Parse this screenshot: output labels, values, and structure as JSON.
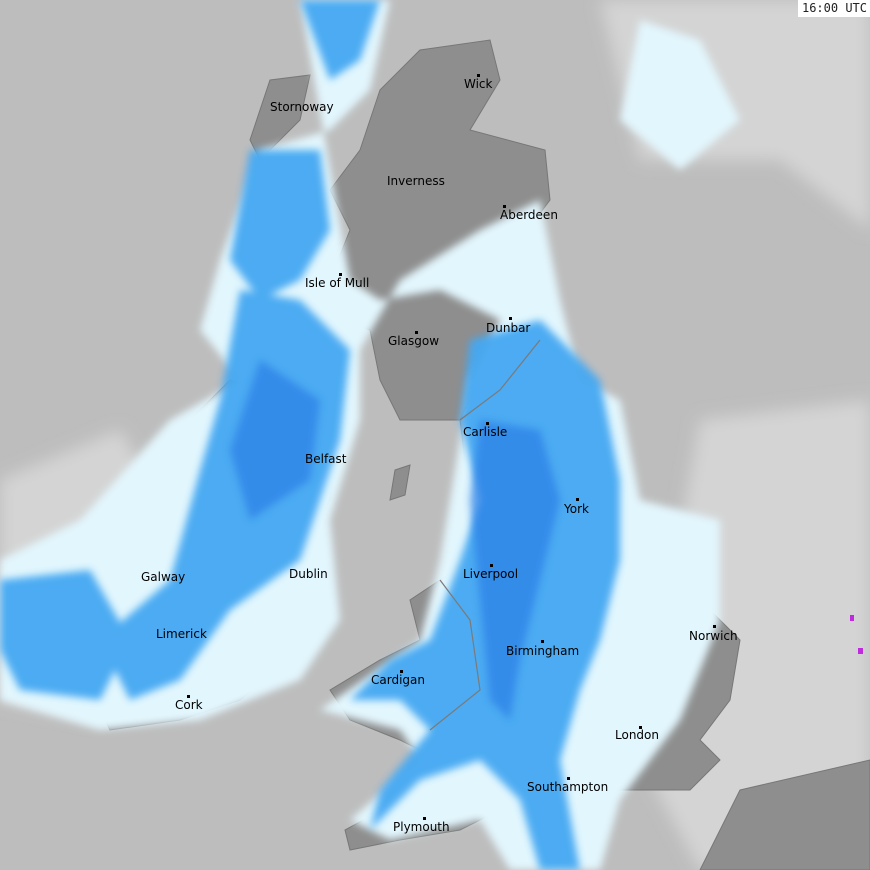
{
  "timestamp": "16:00 UTC",
  "colors": {
    "sea": "#bdbdbd",
    "land": "#8e8e8e",
    "cloud": "#d8d8d8",
    "rain_light": "#e0f6fd",
    "rain_cyan": "#5fd4f7",
    "rain_moderate": "#3a9ef0",
    "rain_heavy": "#1d6fe0",
    "rain_intense": "#3b2bd6"
  },
  "cities": [
    {
      "name": "Wick"
    },
    {
      "name": "Stornoway"
    },
    {
      "name": "Inverness"
    },
    {
      "name": "Aberdeen"
    },
    {
      "name": "Isle of Mull"
    },
    {
      "name": "Dunbar"
    },
    {
      "name": "Glasgow"
    },
    {
      "name": "Carlisle"
    },
    {
      "name": "Belfast"
    },
    {
      "name": "York"
    },
    {
      "name": "Galway"
    },
    {
      "name": "Dublin"
    },
    {
      "name": "Liverpool"
    },
    {
      "name": "Limerick"
    },
    {
      "name": "Norwich"
    },
    {
      "name": "Birmingham"
    },
    {
      "name": "Cardigan"
    },
    {
      "name": "Cork"
    },
    {
      "name": "London"
    },
    {
      "name": "Southampton"
    },
    {
      "name": "Plymouth"
    }
  ]
}
